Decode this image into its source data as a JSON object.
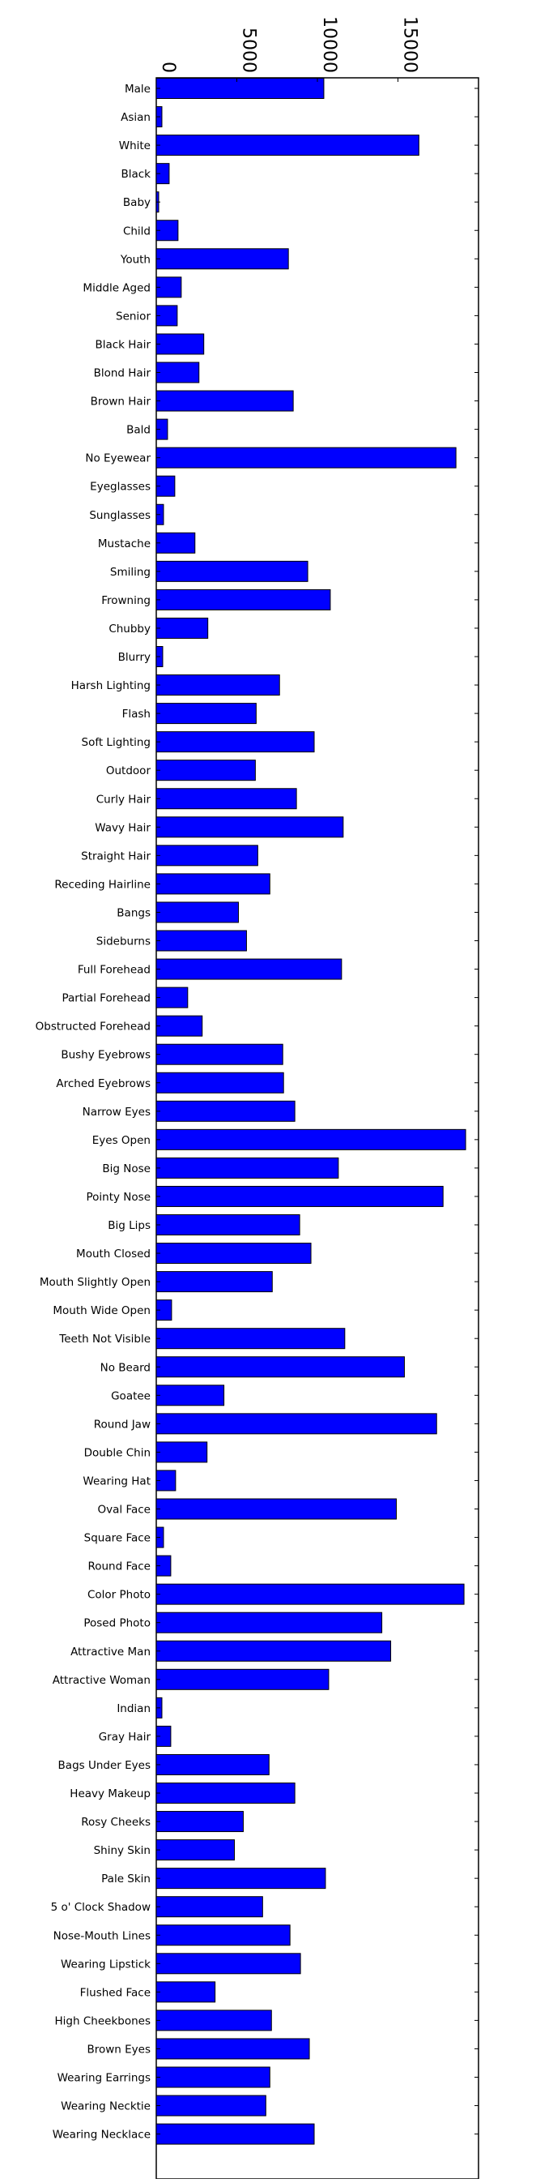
{
  "chart_data": {
    "type": "bar",
    "orientation": "horizontal",
    "title": "",
    "xlabel": "",
    "ylabel": "",
    "xlim": [
      0,
      20000
    ],
    "x_ticks": [
      0,
      5000,
      10000,
      15000
    ],
    "x_tick_labels": [
      "0",
      "5000",
      "10000",
      "15000"
    ],
    "grid": false,
    "legend": "none",
    "bar_color": "#0000ff",
    "edge_color": "#000000",
    "categories": [
      "Male",
      "Asian",
      "White",
      "Black",
      "Baby",
      "Child",
      "Youth",
      "Middle Aged",
      "Senior",
      "Black Hair",
      "Blond Hair",
      "Brown Hair",
      "Bald",
      "No Eyewear",
      "Eyeglasses",
      "Sunglasses",
      "Mustache",
      "Smiling",
      "Frowning",
      "Chubby",
      "Blurry",
      "Harsh Lighting",
      "Flash",
      "Soft Lighting",
      "Outdoor",
      "Curly Hair",
      "Wavy Hair",
      "Straight Hair",
      "Receding Hairline",
      "Bangs",
      "Sideburns",
      "Full Forehead",
      "Partial Forehead",
      "Obstructed Forehead",
      "Bushy Eyebrows",
      "Arched Eyebrows",
      "Narrow Eyes",
      "Eyes Open",
      "Big Nose",
      "Pointy Nose",
      "Big Lips",
      "Mouth Closed",
      "Mouth Slightly Open",
      "Mouth Wide Open",
      "Teeth Not Visible",
      "No Beard",
      "Goatee",
      "Round Jaw",
      "Double Chin",
      "Wearing Hat",
      "Oval Face",
      "Square Face",
      "Round Face",
      "Color Photo",
      "Posed Photo",
      "Attractive Man",
      "Attractive Woman",
      "Indian",
      "Gray Hair",
      "Bags Under Eyes",
      "Heavy Makeup",
      "Rosy Cheeks",
      "Shiny Skin",
      "Pale Skin",
      "5 o' Clock Shadow",
      "Nose-Mouth Lines",
      "Wearing Lipstick",
      "Flushed Face",
      "High Cheekbones",
      "Brown Eyes",
      "Wearing Earrings",
      "Wearing Necktie",
      "Wearing Necklace"
    ],
    "values": [
      10400,
      350,
      16300,
      800,
      150,
      1350,
      8200,
      1550,
      1300,
      2950,
      2650,
      8500,
      700,
      18600,
      1150,
      450,
      2400,
      9400,
      10800,
      3200,
      400,
      7650,
      6200,
      9800,
      6150,
      8700,
      11600,
      6300,
      7050,
      5100,
      5600,
      11500,
      1950,
      2850,
      7850,
      7900,
      8600,
      19200,
      11300,
      17800,
      8900,
      9600,
      7200,
      950,
      11700,
      15400,
      4200,
      17400,
      3150,
      1200,
      14900,
      450,
      900,
      19100,
      14000,
      14550,
      10700,
      350,
      900,
      7000,
      8600,
      5400,
      4850,
      10500,
      6600,
      8300,
      8950,
      3650,
      7150,
      9500,
      7050,
      6800,
      9800
    ]
  }
}
